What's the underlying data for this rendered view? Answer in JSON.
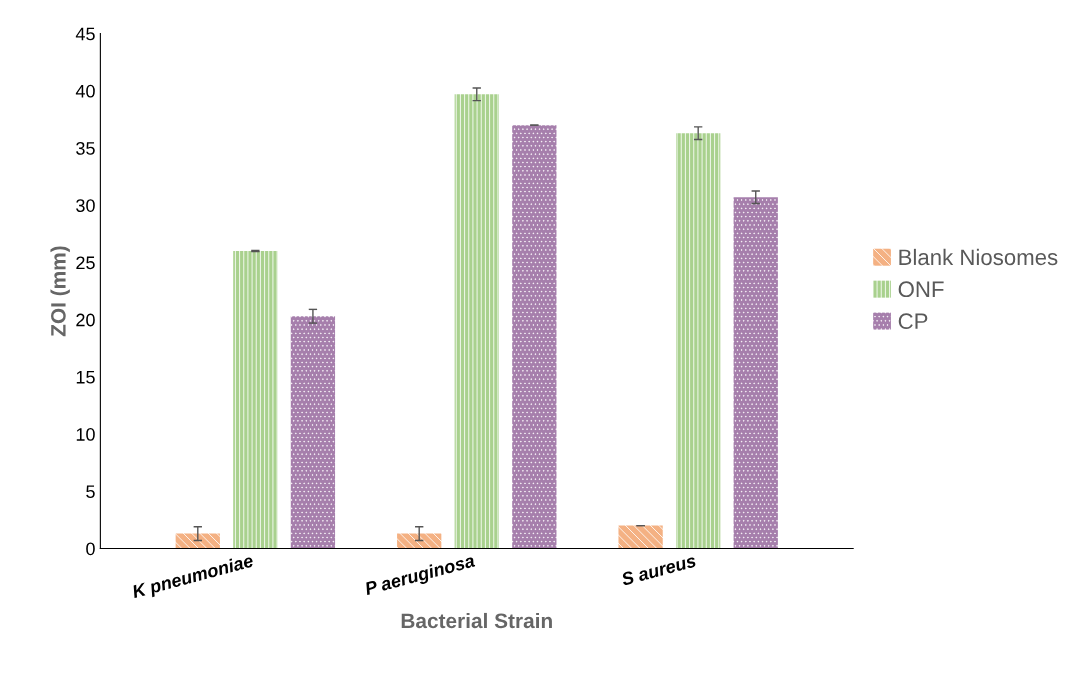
{
  "chart_data": {
    "type": "bar",
    "xlabel": "Bacterial Strain",
    "ylabel": "ZOI (mm)",
    "categories": [
      "K pneumoniae",
      "P aeruginosa",
      "S aureus"
    ],
    "series": [
      {
        "name": "Blank Niosomes",
        "color": "#f4b183",
        "values": [
          1.3,
          1.3,
          2.0
        ],
        "errors": [
          0.6,
          0.6,
          0
        ]
      },
      {
        "name": "ONF",
        "color": "#a9d18e",
        "values": [
          26.0,
          39.7,
          36.3
        ],
        "errors": [
          0.05,
          0.55,
          0.55
        ]
      },
      {
        "name": "CP",
        "color": "#a67fac",
        "values": [
          20.3,
          37.0,
          30.7
        ],
        "errors": [
          0.6,
          0,
          0.55
        ]
      }
    ],
    "ylim": [
      0,
      45
    ],
    "yticks": [
      0,
      5,
      10,
      15,
      20,
      25,
      30,
      35,
      40,
      45
    ],
    "grid": false,
    "legend": "right"
  }
}
